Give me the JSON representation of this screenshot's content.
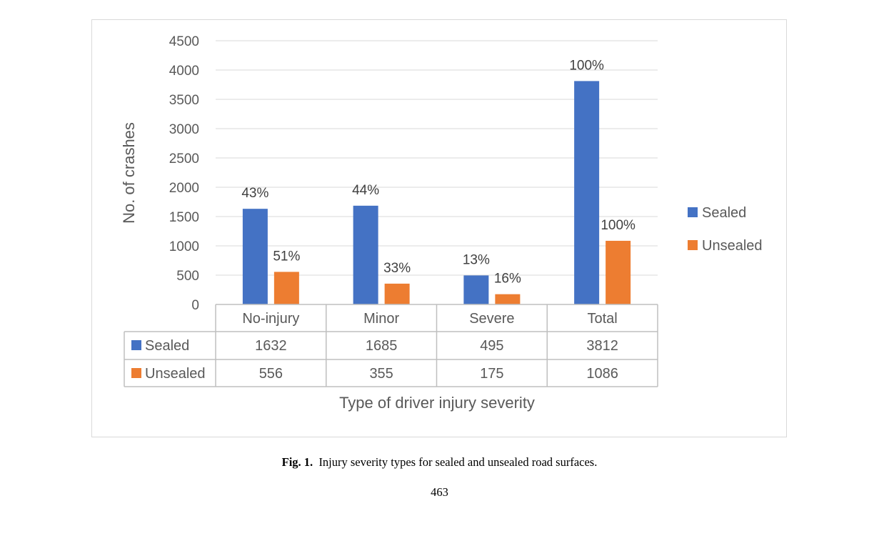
{
  "chart_data": {
    "type": "bar",
    "categories": [
      "No-injury",
      "Minor",
      "Severe",
      "Total"
    ],
    "series": [
      {
        "name": "Sealed",
        "values": [
          1632,
          1685,
          495,
          3812
        ],
        "labels": [
          "43%",
          "44%",
          "13%",
          "100%"
        ],
        "color": "#4472c4"
      },
      {
        "name": "Unsealed",
        "values": [
          556,
          355,
          175,
          1086
        ],
        "labels": [
          "51%",
          "33%",
          "16%",
          "100%"
        ],
        "color": "#ed7d31"
      }
    ],
    "ylabel": "No. of crashes",
    "xlabel": "Type of driver injury severity",
    "ylim": [
      0,
      4500
    ],
    "yticks": [
      "0",
      "500",
      "1000",
      "1500",
      "2000",
      "2500",
      "3000",
      "3500",
      "4000",
      "4500"
    ],
    "grid": true,
    "legend": "right",
    "data_table": {
      "rows": [
        {
          "name": "Sealed",
          "cells": [
            "1632",
            "1685",
            "495",
            "3812"
          ]
        },
        {
          "name": "Unsealed",
          "cells": [
            "556",
            "355",
            "175",
            "1086"
          ]
        }
      ]
    }
  },
  "caption": {
    "label": "Fig. 1.",
    "text": "Injury severity types for sealed and unsealed road surfaces."
  },
  "page_number": "463"
}
